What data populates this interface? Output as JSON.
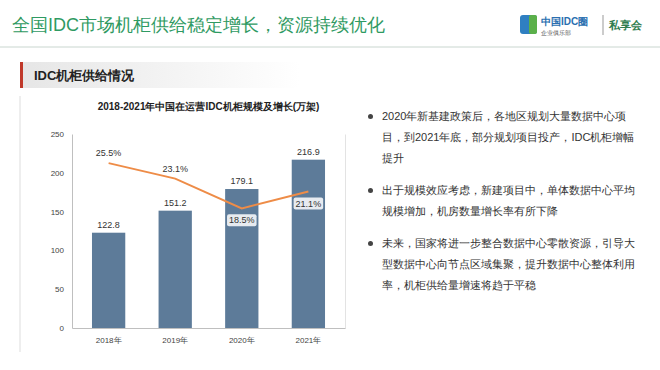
{
  "header": {
    "title": "全国IDC市场机柜供给稳定增长，资源持续优化",
    "logo": "中国IDC圈",
    "logo_sub": "企业俱乐部",
    "tag": "私享会"
  },
  "section": "IDC机柜供给情况",
  "bullets": [
    "2020年新基建政策后，各地区规划大量数据中心项目，到2021年底，部分规划项目投产，IDC机柜增幅提升",
    "出于规模效应考虑，新建项目中，单体数据中心平均规模增加，机房数量增长率有所下降",
    "未来，国家将进一步整合数据中心零散资源，引导大型数据中心向节点区域集聚，提升数据中心整体利用率，机柜供给量增速将趋于平稳"
  ],
  "chart_data": {
    "type": "bar",
    "title": "2018-2021年中国在运营IDC机柜规模及增长(万架)",
    "categories": [
      "2018年",
      "2019年",
      "2020年",
      "2021年"
    ],
    "series": [
      {
        "type": "bar",
        "color": "#5d7b99",
        "values": [
          122.8,
          151.2,
          179.1,
          216.9
        ]
      },
      {
        "type": "line",
        "color": "#ee8c47",
        "axis": "y2",
        "values": [
          25.5,
          23.1,
          18.5,
          21.1
        ],
        "value_labels": [
          "25.5%",
          "23.1%",
          "18.5%",
          "21.1%"
        ]
      }
    ],
    "ylim": [
      0,
      250
    ],
    "yticks": [
      0,
      50,
      100,
      150,
      200,
      250
    ],
    "y2lim": [
      0,
      30
    ],
    "y2ticks": [],
    "grid": false,
    "data_labels": true
  }
}
